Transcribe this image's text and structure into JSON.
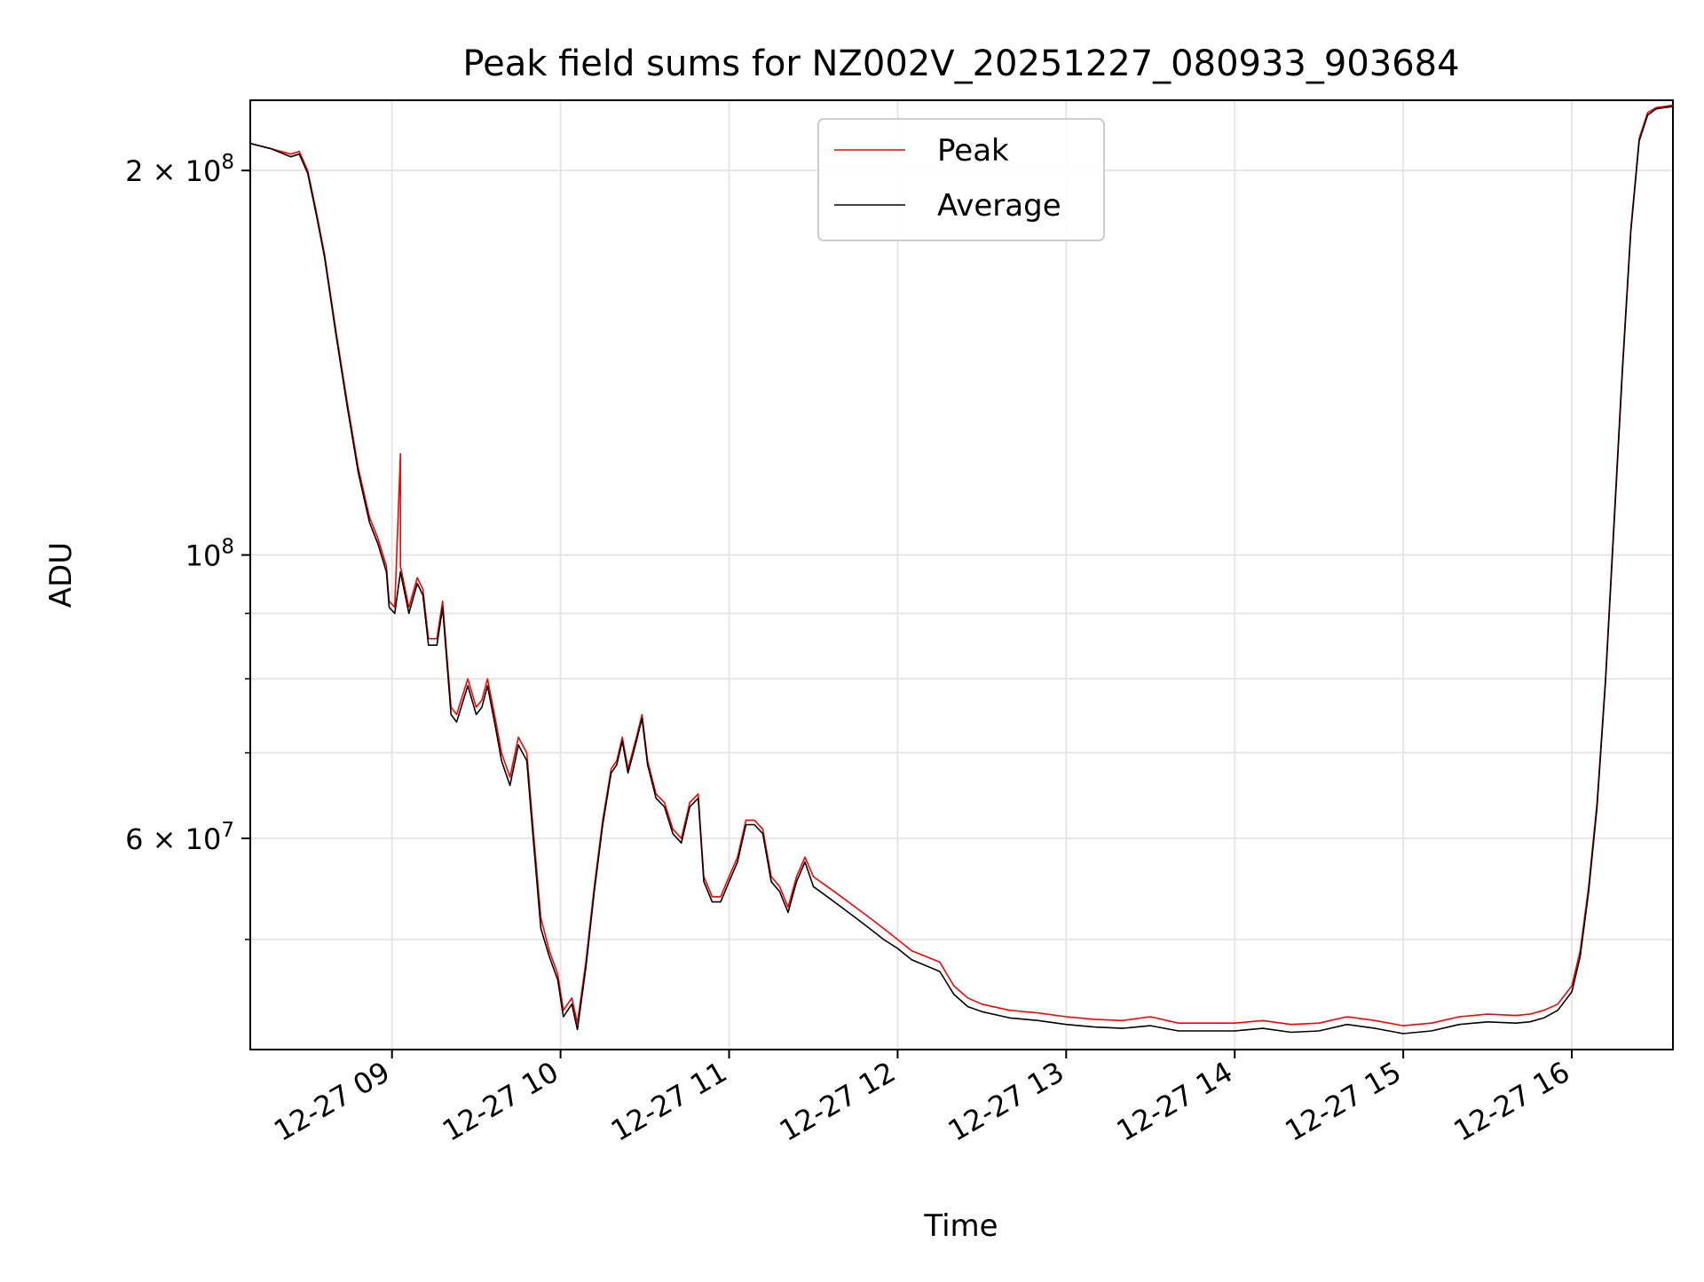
{
  "chart_data": {
    "type": "line",
    "title": "Peak field sums for NZ002V_20251227_080933_903684",
    "xlabel": "Time",
    "ylabel": "ADU",
    "x_scale": "time",
    "y_scale": "log",
    "xlim": [
      "2025-12-27 08:09:33",
      "2025-12-27 16:36:00"
    ],
    "ylim": [
      41000000,
      227000000
    ],
    "grid": true,
    "legend_position": "upper center",
    "x_tick_labels": [
      "12-27 09",
      "12-27 10",
      "12-27 11",
      "12-27 12",
      "12-27 13",
      "12-27 14",
      "12-27 15",
      "12-27 16"
    ],
    "x_tick_times": [
      "2025-12-27 09:00",
      "2025-12-27 10:00",
      "2025-12-27 11:00",
      "2025-12-27 12:00",
      "2025-12-27 13:00",
      "2025-12-27 14:00",
      "2025-12-27 15:00",
      "2025-12-27 16:00"
    ],
    "y_major_ticks": [
      {
        "value": 200000000,
        "mantissa": "2",
        "times": "×",
        "base": "10",
        "exp": "8"
      },
      {
        "value": 100000000,
        "mantissa": "",
        "times": "",
        "base": "10",
        "exp": "8"
      },
      {
        "value": 60000000,
        "mantissa": "6",
        "times": "×",
        "base": "10",
        "exp": "7"
      }
    ],
    "y_minor_ticks": [
      40000000,
      50000000,
      70000000,
      80000000,
      90000000
    ],
    "series": [
      {
        "name": "Peak",
        "color": "#ff0000",
        "points": [
          [
            "08:09:33",
            210000000
          ],
          [
            "08:17",
            208000000
          ],
          [
            "08:24",
            206000000
          ],
          [
            "08:27",
            207000000
          ],
          [
            "08:30",
            200000000
          ],
          [
            "08:33",
            186000000
          ],
          [
            "08:36",
            172000000
          ],
          [
            "08:40",
            150000000
          ],
          [
            "08:44",
            132000000
          ],
          [
            "08:48",
            117000000
          ],
          [
            "08:52",
            107000000
          ],
          [
            "08:55",
            103000000
          ],
          [
            "08:58",
            98000000
          ],
          [
            "08:59",
            92000000
          ],
          [
            "09:01",
            91000000
          ],
          [
            "09:03",
            120000000
          ],
          [
            "09:03",
            98000000
          ],
          [
            "09:06",
            91000000
          ],
          [
            "09:09",
            96000000
          ],
          [
            "09:11",
            94000000
          ],
          [
            "09:13",
            86000000
          ],
          [
            "09:16",
            86000000
          ],
          [
            "09:18",
            92000000
          ],
          [
            "09:21",
            76000000
          ],
          [
            "09:23",
            75000000
          ],
          [
            "09:27",
            80000000
          ],
          [
            "09:30",
            76000000
          ],
          [
            "09:32",
            77000000
          ],
          [
            "09:34",
            80000000
          ],
          [
            "09:37",
            74000000
          ],
          [
            "09:39",
            70000000
          ],
          [
            "09:42",
            67000000
          ],
          [
            "09:45",
            72000000
          ],
          [
            "09:48",
            70000000
          ],
          [
            "09:50",
            62000000
          ],
          [
            "09:53",
            52000000
          ],
          [
            "09:56",
            49000000
          ],
          [
            "09:59",
            47000000
          ],
          [
            "10:01",
            44000000
          ],
          [
            "10:04",
            45000000
          ],
          [
            "10:06",
            43000000
          ],
          [
            "10:09",
            48000000
          ],
          [
            "10:12",
            55000000
          ],
          [
            "10:15",
            62000000
          ],
          [
            "10:18",
            68000000
          ],
          [
            "10:20",
            69000000
          ],
          [
            "10:22",
            72000000
          ],
          [
            "10:24",
            68000000
          ],
          [
            "10:27",
            72000000
          ],
          [
            "10:29",
            75000000
          ],
          [
            "10:31",
            69000000
          ],
          [
            "10:34",
            65000000
          ],
          [
            "10:37",
            64000000
          ],
          [
            "10:40",
            61000000
          ],
          [
            "10:43",
            60000000
          ],
          [
            "10:46",
            64000000
          ],
          [
            "10:49",
            65000000
          ],
          [
            "10:51",
            56000000
          ],
          [
            "10:54",
            54000000
          ],
          [
            "10:57",
            54000000
          ],
          [
            "11:00",
            56000000
          ],
          [
            "11:03",
            58000000
          ],
          [
            "11:06",
            62000000
          ],
          [
            "11:09",
            62000000
          ],
          [
            "11:12",
            61000000
          ],
          [
            "11:15",
            56000000
          ],
          [
            "11:18",
            55000000
          ],
          [
            "11:21",
            53000000
          ],
          [
            "11:24",
            56000000
          ],
          [
            "11:27",
            58000000
          ],
          [
            "11:30",
            56000000
          ],
          [
            "11:35",
            55000000
          ],
          [
            "11:40",
            54000000
          ],
          [
            "11:45",
            53000000
          ],
          [
            "11:50",
            52000000
          ],
          [
            "11:55",
            51000000
          ],
          [
            "12:00",
            50000000
          ],
          [
            "12:05",
            49000000
          ],
          [
            "12:10",
            48500000
          ],
          [
            "12:15",
            48000000
          ],
          [
            "12:20",
            46000000
          ],
          [
            "12:25",
            45000000
          ],
          [
            "12:30",
            44500000
          ],
          [
            "12:40",
            44000000
          ],
          [
            "12:50",
            43800000
          ],
          [
            "13:00",
            43500000
          ],
          [
            "13:10",
            43300000
          ],
          [
            "13:20",
            43200000
          ],
          [
            "13:30",
            43500000
          ],
          [
            "13:40",
            43000000
          ],
          [
            "13:50",
            43000000
          ],
          [
            "14:00",
            43000000
          ],
          [
            "14:10",
            43200000
          ],
          [
            "14:20",
            42900000
          ],
          [
            "14:30",
            43000000
          ],
          [
            "14:40",
            43500000
          ],
          [
            "14:50",
            43200000
          ],
          [
            "15:00",
            42800000
          ],
          [
            "15:10",
            43000000
          ],
          [
            "15:20",
            43500000
          ],
          [
            "15:30",
            43700000
          ],
          [
            "15:40",
            43600000
          ],
          [
            "15:45",
            43700000
          ],
          [
            "15:50",
            44000000
          ],
          [
            "15:55",
            44500000
          ],
          [
            "16:00",
            46000000
          ],
          [
            "16:03",
            49000000
          ],
          [
            "16:06",
            55000000
          ],
          [
            "16:09",
            64000000
          ],
          [
            "16:12",
            80000000
          ],
          [
            "16:15",
            106000000
          ],
          [
            "16:18",
            140000000
          ],
          [
            "16:21",
            180000000
          ],
          [
            "16:24",
            212000000
          ],
          [
            "16:27",
            222000000
          ],
          [
            "16:30",
            224000000
          ],
          [
            "16:36",
            225000000
          ]
        ]
      },
      {
        "name": "Average",
        "color": "#000000",
        "points": [
          [
            "08:09:33",
            210000000
          ],
          [
            "08:17",
            208000000
          ],
          [
            "08:24",
            205000000
          ],
          [
            "08:27",
            206000000
          ],
          [
            "08:30",
            199000000
          ],
          [
            "08:33",
            185000000
          ],
          [
            "08:36",
            171000000
          ],
          [
            "08:40",
            149000000
          ],
          [
            "08:44",
            131000000
          ],
          [
            "08:48",
            116000000
          ],
          [
            "08:52",
            106000000
          ],
          [
            "08:55",
            102000000
          ],
          [
            "08:58",
            97000000
          ],
          [
            "08:59",
            91000000
          ],
          [
            "09:01",
            90000000
          ],
          [
            "09:03",
            97000000
          ],
          [
            "09:06",
            90000000
          ],
          [
            "09:09",
            95000000
          ],
          [
            "09:11",
            93000000
          ],
          [
            "09:13",
            85000000
          ],
          [
            "09:16",
            85000000
          ],
          [
            "09:18",
            91000000
          ],
          [
            "09:21",
            75000000
          ],
          [
            "09:23",
            74000000
          ],
          [
            "09:27",
            79000000
          ],
          [
            "09:30",
            75000000
          ],
          [
            "09:32",
            76000000
          ],
          [
            "09:34",
            79000000
          ],
          [
            "09:37",
            73000000
          ],
          [
            "09:39",
            69000000
          ],
          [
            "09:42",
            66000000
          ],
          [
            "09:45",
            71000000
          ],
          [
            "09:48",
            69000000
          ],
          [
            "09:50",
            61000000
          ],
          [
            "09:53",
            51000000
          ],
          [
            "09:56",
            48500000
          ],
          [
            "09:59",
            46500000
          ],
          [
            "10:01",
            43500000
          ],
          [
            "10:04",
            44500000
          ],
          [
            "10:06",
            42500000
          ],
          [
            "10:09",
            47500000
          ],
          [
            "10:12",
            54500000
          ],
          [
            "10:15",
            61500000
          ],
          [
            "10:18",
            67500000
          ],
          [
            "10:20",
            68500000
          ],
          [
            "10:22",
            71500000
          ],
          [
            "10:24",
            67500000
          ],
          [
            "10:27",
            71500000
          ],
          [
            "10:29",
            74500000
          ],
          [
            "10:31",
            68500000
          ],
          [
            "10:34",
            64500000
          ],
          [
            "10:37",
            63500000
          ],
          [
            "10:40",
            60500000
          ],
          [
            "10:43",
            59500000
          ],
          [
            "10:46",
            63500000
          ],
          [
            "10:49",
            64500000
          ],
          [
            "10:51",
            55500000
          ],
          [
            "10:54",
            53500000
          ],
          [
            "10:57",
            53500000
          ],
          [
            "11:00",
            55500000
          ],
          [
            "11:03",
            57500000
          ],
          [
            "11:06",
            61500000
          ],
          [
            "11:09",
            61500000
          ],
          [
            "11:12",
            60500000
          ],
          [
            "11:15",
            55500000
          ],
          [
            "11:18",
            54500000
          ],
          [
            "11:21",
            52500000
          ],
          [
            "11:24",
            55500000
          ],
          [
            "11:27",
            57500000
          ],
          [
            "11:30",
            55000000
          ],
          [
            "11:35",
            54000000
          ],
          [
            "11:40",
            53000000
          ],
          [
            "11:45",
            52000000
          ],
          [
            "11:50",
            51000000
          ],
          [
            "11:55",
            50000000
          ],
          [
            "12:00",
            49200000
          ],
          [
            "12:05",
            48200000
          ],
          [
            "12:10",
            47700000
          ],
          [
            "12:15",
            47200000
          ],
          [
            "12:20",
            45300000
          ],
          [
            "12:25",
            44300000
          ],
          [
            "12:30",
            43900000
          ],
          [
            "12:40",
            43400000
          ],
          [
            "12:50",
            43200000
          ],
          [
            "13:00",
            42900000
          ],
          [
            "13:10",
            42700000
          ],
          [
            "13:20",
            42600000
          ],
          [
            "13:30",
            42800000
          ],
          [
            "13:40",
            42400000
          ],
          [
            "13:50",
            42400000
          ],
          [
            "14:00",
            42400000
          ],
          [
            "14:10",
            42600000
          ],
          [
            "14:20",
            42300000
          ],
          [
            "14:30",
            42400000
          ],
          [
            "14:40",
            42900000
          ],
          [
            "14:50",
            42600000
          ],
          [
            "15:00",
            42200000
          ],
          [
            "15:10",
            42400000
          ],
          [
            "15:20",
            42900000
          ],
          [
            "15:30",
            43100000
          ],
          [
            "15:40",
            43000000
          ],
          [
            "15:45",
            43100000
          ],
          [
            "15:50",
            43400000
          ],
          [
            "15:55",
            44000000
          ],
          [
            "16:00",
            45500000
          ],
          [
            "16:03",
            48500000
          ],
          [
            "16:06",
            54500000
          ],
          [
            "16:09",
            63500000
          ],
          [
            "16:12",
            79500000
          ],
          [
            "16:15",
            105000000
          ],
          [
            "16:18",
            139000000
          ],
          [
            "16:21",
            179000000
          ],
          [
            "16:24",
            211000000
          ],
          [
            "16:27",
            221000000
          ],
          [
            "16:30",
            223500000
          ],
          [
            "16:36",
            224500000
          ]
        ]
      }
    ]
  }
}
